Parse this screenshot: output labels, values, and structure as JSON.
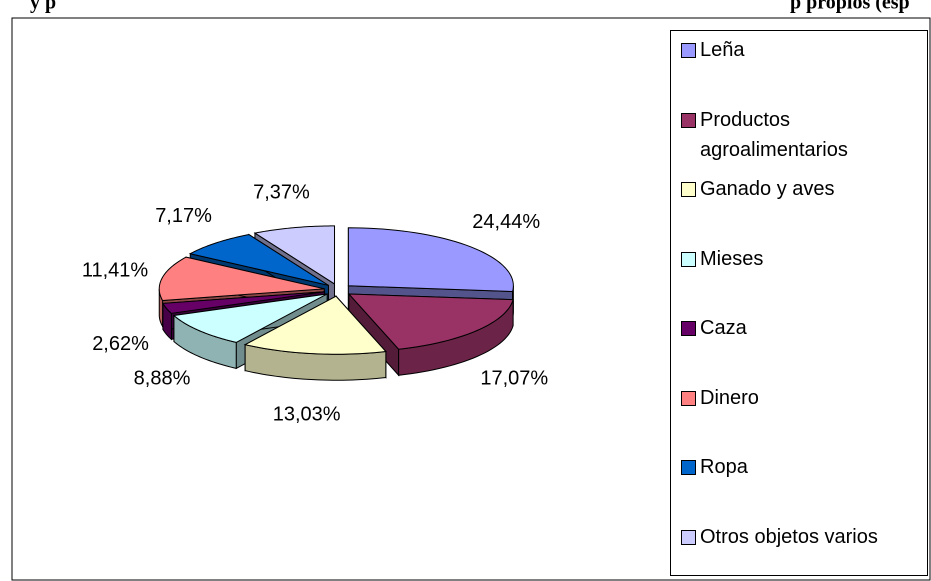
{
  "chart_data": {
    "type": "pie3d",
    "title_fragments": [
      "y p",
      "p propios (esp"
    ],
    "categories": [
      "Leña",
      "Productos agroalimentarios",
      "Ganado y aves",
      "Mieses",
      "Caza",
      "Dinero",
      "Ropa",
      "Otros objetos varios"
    ],
    "values": [
      24.44,
      17.07,
      13.03,
      8.88,
      2.62,
      11.41,
      7.17,
      7.37
    ],
    "value_labels": [
      "24,44%",
      "17,07%",
      "13,03%",
      "8,88%",
      "2,62%",
      "11,41%",
      "7,17%",
      "7,37%"
    ],
    "colors": [
      "#9999ff",
      "#993366",
      "#ffffcc",
      "#ccffff",
      "#660066",
      "#ff8080",
      "#0066cc",
      "#ccccff"
    ],
    "legend": "right"
  }
}
